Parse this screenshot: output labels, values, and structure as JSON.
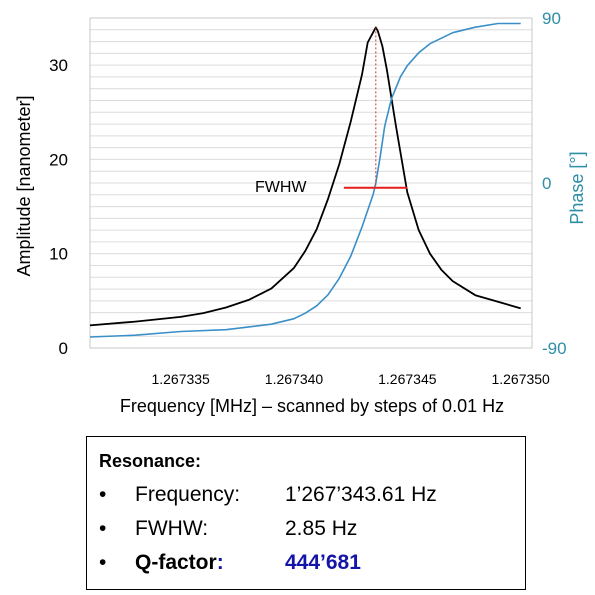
{
  "colors": {
    "amplitude": "#000000",
    "phase": "#3a8fc8",
    "phase_axis": "#2e8fa6",
    "fwhm_marker": "#e81c1c",
    "peak_marker": "#cc3333",
    "q_value": "#1414a8"
  },
  "chart_data": {
    "type": "line",
    "xlabel": "Frequency [MHz] – scanned by steps of 0.01 Hz",
    "ylabel": "Amplitude [nanometer]",
    "y2label": "Phase [°]",
    "x_ticks": [
      "1.267335",
      "1.267340",
      "1.267345",
      "1.267350"
    ],
    "y_ticks": [
      "0",
      "10",
      "20",
      "30"
    ],
    "y2_ticks": [
      "90",
      "0",
      "-90"
    ],
    "xlim": [
      1.267331,
      1.2673505
    ],
    "ylim": [
      0,
      35
    ],
    "y2lim": [
      -90,
      90
    ],
    "grid": "horizontal",
    "annotation": "FWHW",
    "series": [
      {
        "name": "Amplitude",
        "axis": "left",
        "x": [
          1.267331,
          1.267333,
          1.267335,
          1.267336,
          1.267337,
          1.267338,
          1.267339,
          1.26734,
          1.2673405,
          1.267341,
          1.2673415,
          1.267342,
          1.2673425,
          1.267343,
          1.26734325,
          1.2673435,
          1.26734361,
          1.2673437,
          1.2673439,
          1.2673441,
          1.2673445,
          1.267345,
          1.2673455,
          1.267346,
          1.2673465,
          1.267347,
          1.267348,
          1.267349,
          1.26735
        ],
        "values": [
          2.4,
          2.8,
          3.3,
          3.7,
          4.3,
          5.1,
          6.3,
          8.5,
          10.3,
          12.6,
          15.8,
          19.5,
          24.0,
          29.0,
          32.4,
          33.5,
          34.0,
          33.6,
          32.0,
          29.5,
          23.5,
          16.5,
          12.5,
          10.0,
          8.3,
          7.1,
          5.6,
          4.9,
          4.2
        ]
      },
      {
        "name": "Phase",
        "axis": "right",
        "x": [
          1.267331,
          1.267333,
          1.267335,
          1.267337,
          1.267339,
          1.26734,
          1.2673405,
          1.267341,
          1.2673415,
          1.267342,
          1.2673425,
          1.267343,
          1.2673435,
          1.26734361,
          1.2673438,
          1.267344,
          1.2673443,
          1.2673447,
          1.267345,
          1.2673455,
          1.267346,
          1.267347,
          1.267348,
          1.267349,
          1.26735
        ],
        "values": [
          -84,
          -83,
          -81,
          -80,
          -77,
          -74,
          -71,
          -67,
          -61,
          -52,
          -40,
          -24,
          -6,
          0,
          14,
          31,
          46,
          58,
          64,
          71,
          76,
          82,
          85,
          87,
          87
        ]
      }
    ],
    "fwhm_segment": {
      "x": [
        1.2673422,
        1.267345
      ],
      "y": 17.0
    },
    "peak_marker_x": 1.26734361
  },
  "info_box": {
    "heading": "Resonance:",
    "bullet": "•",
    "rows": [
      {
        "label": "Frequency:",
        "value": "1’267’343.61 Hz"
      },
      {
        "label": "FWHW:",
        "value": "2.85 Hz"
      },
      {
        "label": "Q-factor",
        "sep": ":",
        "value": "444’681"
      }
    ]
  }
}
